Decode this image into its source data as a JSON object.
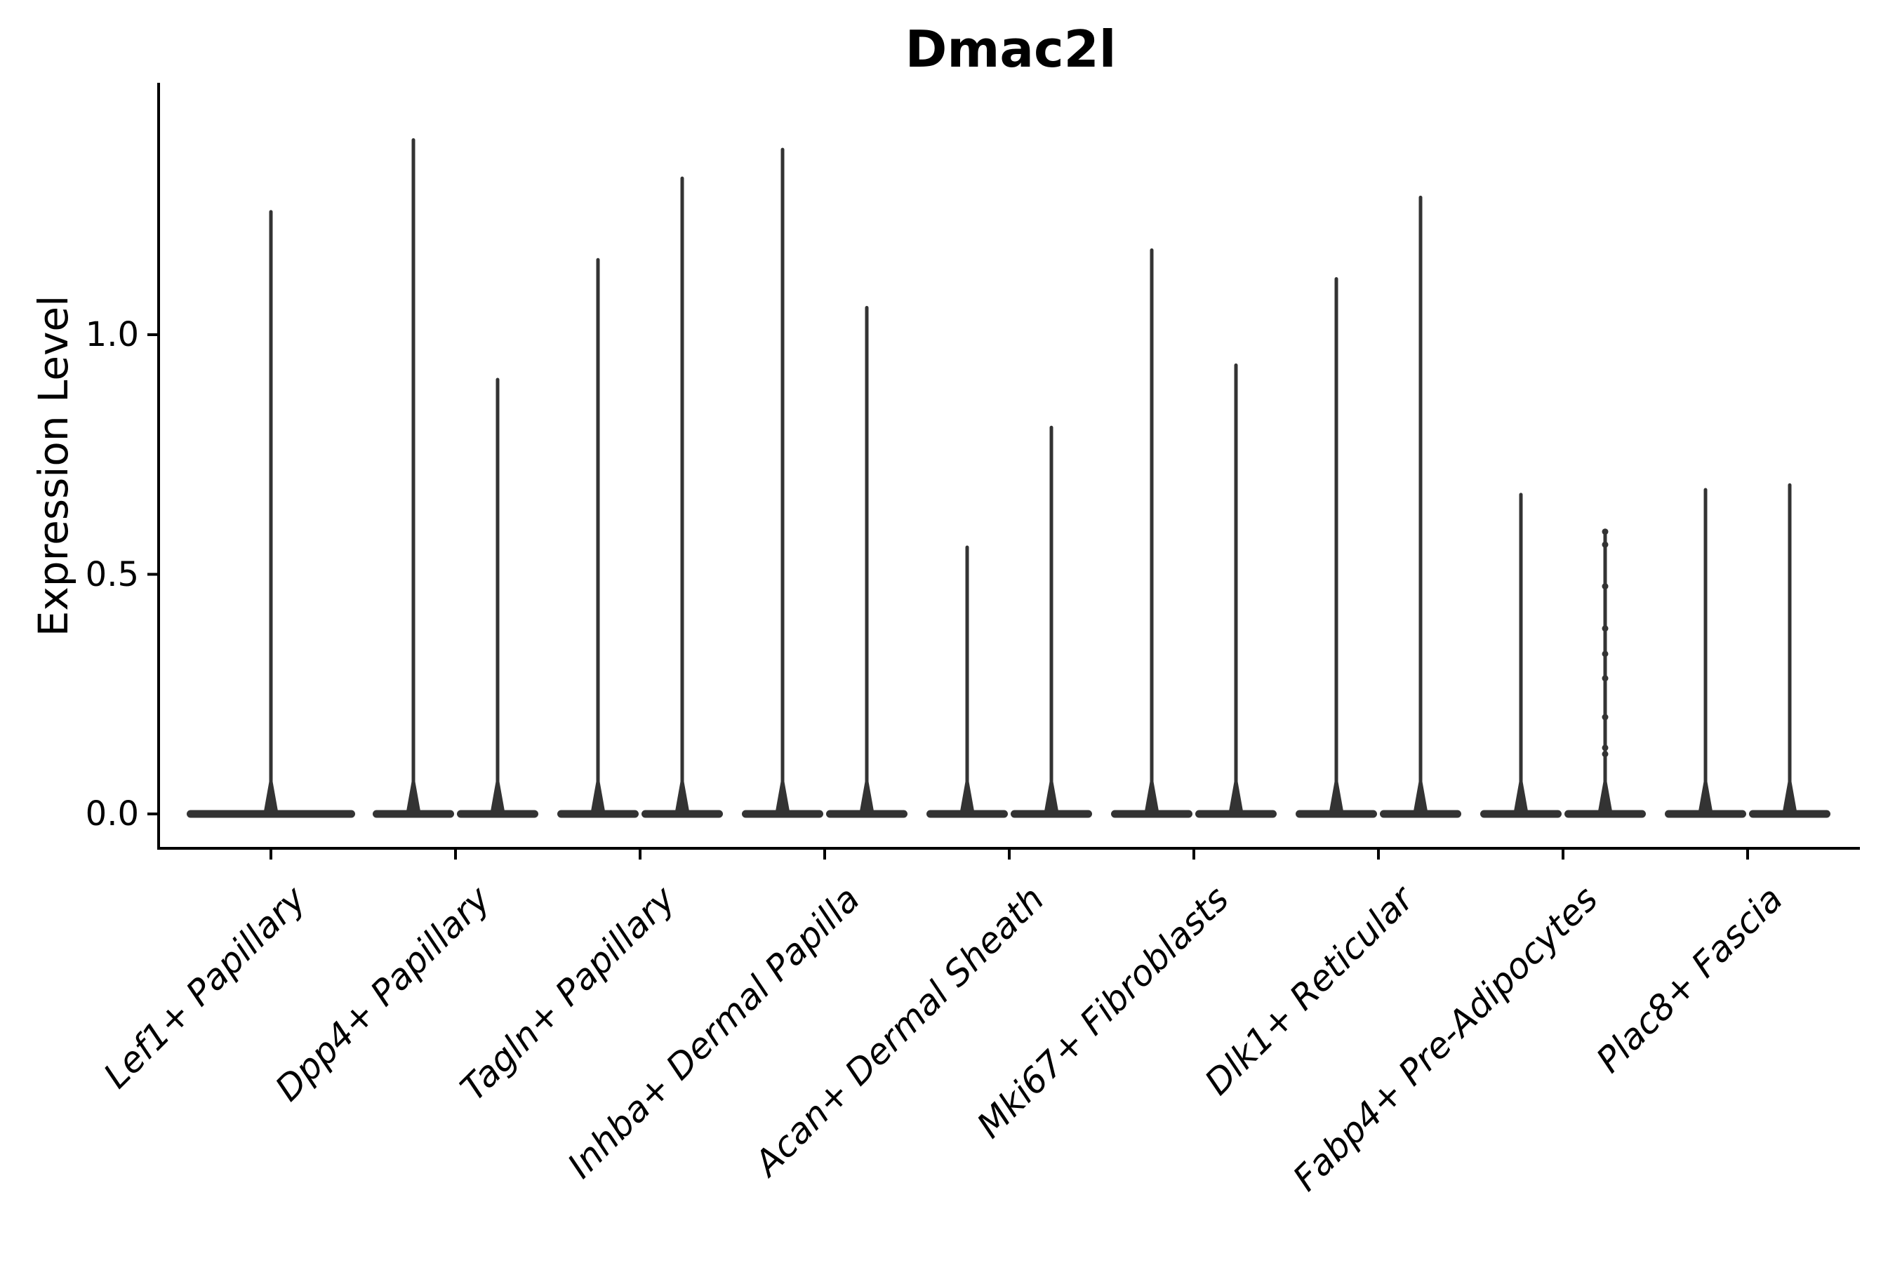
{
  "title": "Dmac2l",
  "ylabel": "Expression Level",
  "chart_data": {
    "type": "violin",
    "title": "Dmac2l",
    "xlabel": "",
    "ylabel": "Expression Level",
    "ylim": [
      -0.07,
      1.53
    ],
    "yticks": [
      0.0,
      0.5,
      1.0
    ],
    "ytick_labels": [
      "0.0",
      "0.5",
      "1.0"
    ],
    "x_tick_rotation_deg": 45,
    "grid": false,
    "legend": "none",
    "description": "Split violin plot; each category has two very thin violins (left/right) collapsed at 0 with a single narrow spike to the max expression value; first category has one centered full-width violin.",
    "categories": [
      "Lef1+ Papillary",
      "Dpp4+ Papillary",
      "Tagln+ Papillary",
      "Inhba+ Dermal Papilla",
      "Acan+ Dermal Sheath",
      "Mki67+ Fibroblasts",
      "Dlk1+ Reticular",
      "Fabp4+ Pre-Adipocytes",
      "Plac8+ Fascia"
    ],
    "violins": [
      {
        "category": "Lef1+ Papillary",
        "shapes": [
          {
            "position": "center",
            "max": 1.26
          }
        ]
      },
      {
        "category": "Dpp4+ Papillary",
        "shapes": [
          {
            "position": "left",
            "max": 1.41
          },
          {
            "position": "right",
            "max": 0.91
          }
        ]
      },
      {
        "category": "Tagln+ Papillary",
        "shapes": [
          {
            "position": "left",
            "max": 1.16
          },
          {
            "position": "right",
            "max": 1.33
          }
        ]
      },
      {
        "category": "Inhba+ Dermal Papilla",
        "shapes": [
          {
            "position": "left",
            "max": 1.39
          },
          {
            "position": "right",
            "max": 1.06
          }
        ]
      },
      {
        "category": "Acan+ Dermal Sheath",
        "shapes": [
          {
            "position": "left",
            "max": 0.56
          },
          {
            "position": "right",
            "max": 0.81
          }
        ]
      },
      {
        "category": "Mki67+ Fibroblasts",
        "shapes": [
          {
            "position": "left",
            "max": 1.18
          },
          {
            "position": "right",
            "max": 0.94
          }
        ]
      },
      {
        "category": "Dlk1+ Reticular",
        "shapes": [
          {
            "position": "left",
            "max": 1.12
          },
          {
            "position": "right",
            "max": 1.29
          }
        ]
      },
      {
        "category": "Fabp4+ Pre-Adipocytes",
        "shapes": [
          {
            "position": "left",
            "max": 0.67
          },
          {
            "position": "right",
            "max": 0.59,
            "jitter_points": [
              0.589,
              0.562,
              0.475,
              0.387,
              0.334,
              0.283,
              0.202,
              0.138,
              0.125
            ]
          }
        ]
      },
      {
        "category": "Plac8+ Fascia",
        "shapes": [
          {
            "position": "left",
            "max": 0.68
          },
          {
            "position": "right",
            "max": 0.69
          }
        ]
      }
    ],
    "colors": {
      "violin": "#333333",
      "axis": "#000000",
      "background": "#ffffff"
    }
  }
}
